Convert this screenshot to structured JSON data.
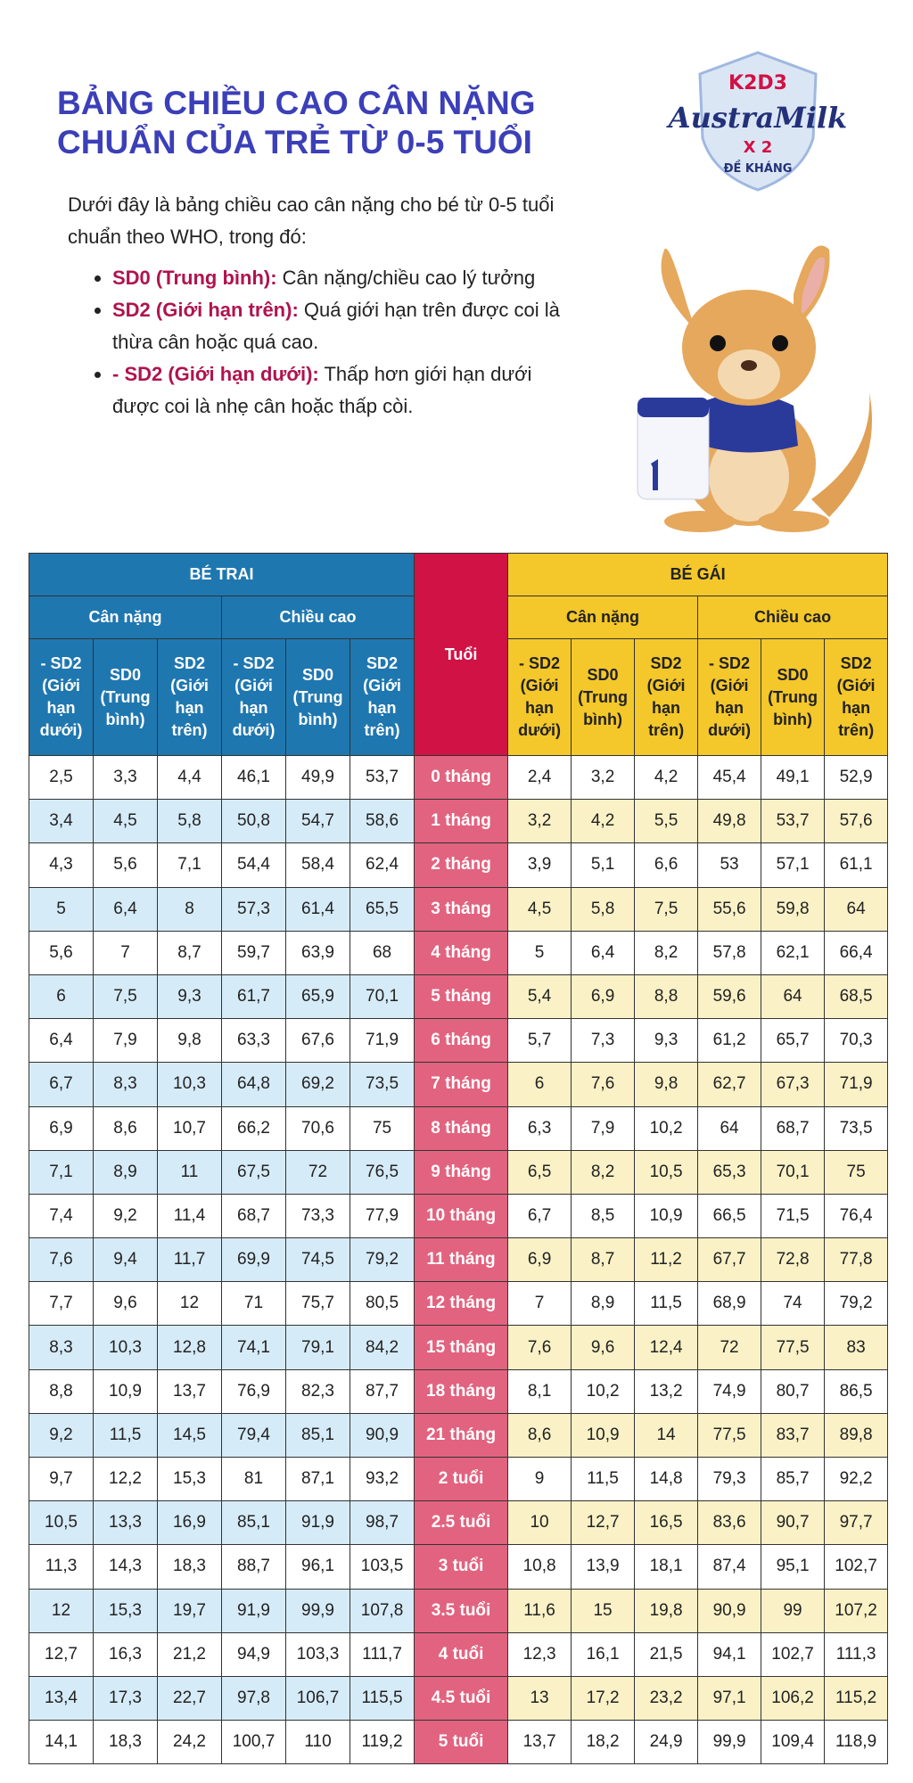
{
  "title": [
    "BẢNG CHIỀU CAO CÂN NẶNG",
    "CHUẨN CỦA TRẺ TỪ 0-5 TUỔI"
  ],
  "logo": {
    "line1": "K2D3",
    "brand": "AustraMilk",
    "line3": "X 2",
    "line4": "ĐỀ KHÁNG"
  },
  "intro": {
    "text": "Dưới đây là bảng chiều cao cân nặng cho bé từ 0-5 tuổi chuẩn theo WHO, trong đó:",
    "bullets": [
      {
        "term": "SD0 (Trung bình):",
        "desc": "Cân nặng/chiều cao lý tưởng"
      },
      {
        "term": "SD2 (Giới hạn trên):",
        "desc": "Quá giới hạn trên được coi là thừa cân hoặc quá cao."
      },
      {
        "term": "- SD2 (Giới hạn dưới):",
        "desc": "Thấp hơn giới hạn dưới được coi là nhẹ cân hoặc thấp còi."
      }
    ]
  },
  "colors": {
    "boy": "#1f77b0",
    "girl": "#f4c72a",
    "age": "#d11245",
    "title": "#3b3fb8"
  },
  "table": {
    "boy_header": "BÉ TRAI",
    "girl_header": "BÉ GÁI",
    "age_header": "Tuổi",
    "weight": "Cân nặng",
    "height": "Chiều cao",
    "sub": [
      "- SD2 (Giới hạn dưới)",
      "SD0 (Trung bình)",
      "SD2 (Giới hạn trên)"
    ],
    "rows": [
      {
        "age": "0 tháng",
        "boy": [
          "2,5",
          "3,3",
          "4,4",
          "46,1",
          "49,9",
          "53,7"
        ],
        "girl": [
          "2,4",
          "3,2",
          "4,2",
          "45,4",
          "49,1",
          "52,9"
        ]
      },
      {
        "age": "1 tháng",
        "boy": [
          "3,4",
          "4,5",
          "5,8",
          "50,8",
          "54,7",
          "58,6"
        ],
        "girl": [
          "3,2",
          "4,2",
          "5,5",
          "49,8",
          "53,7",
          "57,6"
        ]
      },
      {
        "age": "2 tháng",
        "boy": [
          "4,3",
          "5,6",
          "7,1",
          "54,4",
          "58,4",
          "62,4"
        ],
        "girl": [
          "3,9",
          "5,1",
          "6,6",
          "53",
          "57,1",
          "61,1"
        ]
      },
      {
        "age": "3 tháng",
        "boy": [
          "5",
          "6,4",
          "8",
          "57,3",
          "61,4",
          "65,5"
        ],
        "girl": [
          "4,5",
          "5,8",
          "7,5",
          "55,6",
          "59,8",
          "64"
        ]
      },
      {
        "age": "4 tháng",
        "boy": [
          "5,6",
          "7",
          "8,7",
          "59,7",
          "63,9",
          "68"
        ],
        "girl": [
          "5",
          "6,4",
          "8,2",
          "57,8",
          "62,1",
          "66,4"
        ]
      },
      {
        "age": "5 tháng",
        "boy": [
          "6",
          "7,5",
          "9,3",
          "61,7",
          "65,9",
          "70,1"
        ],
        "girl": [
          "5,4",
          "6,9",
          "8,8",
          "59,6",
          "64",
          "68,5"
        ]
      },
      {
        "age": "6 tháng",
        "boy": [
          "6,4",
          "7,9",
          "9,8",
          "63,3",
          "67,6",
          "71,9"
        ],
        "girl": [
          "5,7",
          "7,3",
          "9,3",
          "61,2",
          "65,7",
          "70,3"
        ]
      },
      {
        "age": "7 tháng",
        "boy": [
          "6,7",
          "8,3",
          "10,3",
          "64,8",
          "69,2",
          "73,5"
        ],
        "girl": [
          "6",
          "7,6",
          "9,8",
          "62,7",
          "67,3",
          "71,9"
        ]
      },
      {
        "age": "8 tháng",
        "boy": [
          "6,9",
          "8,6",
          "10,7",
          "66,2",
          "70,6",
          "75"
        ],
        "girl": [
          "6,3",
          "7,9",
          "10,2",
          "64",
          "68,7",
          "73,5"
        ]
      },
      {
        "age": "9 tháng",
        "boy": [
          "7,1",
          "8,9",
          "11",
          "67,5",
          "72",
          "76,5"
        ],
        "girl": [
          "6,5",
          "8,2",
          "10,5",
          "65,3",
          "70,1",
          "75"
        ]
      },
      {
        "age": "10 tháng",
        "boy": [
          "7,4",
          "9,2",
          "11,4",
          "68,7",
          "73,3",
          "77,9"
        ],
        "girl": [
          "6,7",
          "8,5",
          "10,9",
          "66,5",
          "71,5",
          "76,4"
        ]
      },
      {
        "age": "11 tháng",
        "boy": [
          "7,6",
          "9,4",
          "11,7",
          "69,9",
          "74,5",
          "79,2"
        ],
        "girl": [
          "6,9",
          "8,7",
          "11,2",
          "67,7",
          "72,8",
          "77,8"
        ]
      },
      {
        "age": "12 tháng",
        "boy": [
          "7,7",
          "9,6",
          "12",
          "71",
          "75,7",
          "80,5"
        ],
        "girl": [
          "7",
          "8,9",
          "11,5",
          "68,9",
          "74",
          "79,2"
        ]
      },
      {
        "age": "15 tháng",
        "boy": [
          "8,3",
          "10,3",
          "12,8",
          "74,1",
          "79,1",
          "84,2"
        ],
        "girl": [
          "7,6",
          "9,6",
          "12,4",
          "72",
          "77,5",
          "83"
        ]
      },
      {
        "age": "18 tháng",
        "boy": [
          "8,8",
          "10,9",
          "13,7",
          "76,9",
          "82,3",
          "87,7"
        ],
        "girl": [
          "8,1",
          "10,2",
          "13,2",
          "74,9",
          "80,7",
          "86,5"
        ]
      },
      {
        "age": "21 tháng",
        "boy": [
          "9,2",
          "11,5",
          "14,5",
          "79,4",
          "85,1",
          "90,9"
        ],
        "girl": [
          "8,6",
          "10,9",
          "14",
          "77,5",
          "83,7",
          "89,8"
        ]
      },
      {
        "age": "2 tuổi",
        "boy": [
          "9,7",
          "12,2",
          "15,3",
          "81",
          "87,1",
          "93,2"
        ],
        "girl": [
          "9",
          "11,5",
          "14,8",
          "79,3",
          "85,7",
          "92,2"
        ]
      },
      {
        "age": "2.5 tuổi",
        "boy": [
          "10,5",
          "13,3",
          "16,9",
          "85,1",
          "91,9",
          "98,7"
        ],
        "girl": [
          "10",
          "12,7",
          "16,5",
          "83,6",
          "90,7",
          "97,7"
        ]
      },
      {
        "age": "3 tuổi",
        "boy": [
          "11,3",
          "14,3",
          "18,3",
          "88,7",
          "96,1",
          "103,5"
        ],
        "girl": [
          "10,8",
          "13,9",
          "18,1",
          "87,4",
          "95,1",
          "102,7"
        ]
      },
      {
        "age": "3.5 tuổi",
        "boy": [
          "12",
          "15,3",
          "19,7",
          "91,9",
          "99,9",
          "107,8"
        ],
        "girl": [
          "11,6",
          "15",
          "19,8",
          "90,9",
          "99",
          "107,2"
        ]
      },
      {
        "age": "4 tuổi",
        "boy": [
          "12,7",
          "16,3",
          "21,2",
          "94,9",
          "103,3",
          "111,7"
        ],
        "girl": [
          "12,3",
          "16,1",
          "21,5",
          "94,1",
          "102,7",
          "111,3"
        ]
      },
      {
        "age": "4.5 tuổi",
        "boy": [
          "13,4",
          "17,3",
          "22,7",
          "97,8",
          "106,7",
          "115,5"
        ],
        "girl": [
          "13",
          "17,2",
          "23,2",
          "97,1",
          "106,2",
          "115,2"
        ]
      },
      {
        "age": "5 tuổi",
        "boy": [
          "14,1",
          "18,3",
          "24,2",
          "100,7",
          "110",
          "119,2"
        ],
        "girl": [
          "13,7",
          "18,2",
          "24,9",
          "99,9",
          "109,4",
          "118,9"
        ]
      }
    ]
  }
}
